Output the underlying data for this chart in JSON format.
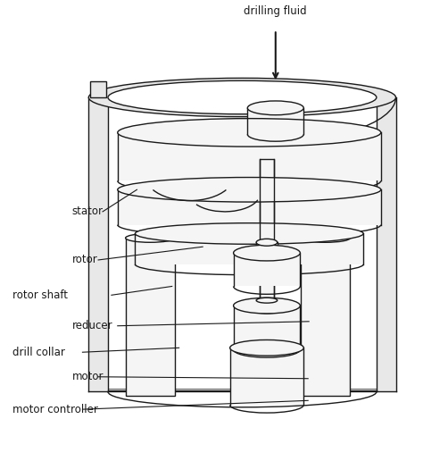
{
  "background_color": "#ffffff",
  "line_color": "#1a1a1a",
  "fill_light": "#f5f5f5",
  "fill_mid": "#e8e8e8",
  "fill_dark": "#d8d8d8",
  "labels": {
    "drilling_fluid": "drilling fluid",
    "stator": "stator",
    "rotor": "rotor",
    "rotor_shaft": "rotor shaft",
    "reducer": "reducer",
    "drill_collar": "drill collar",
    "motor": "motor",
    "motor_controller": "motor controller"
  },
  "figsize": [
    4.74,
    5.16
  ],
  "dpi": 100
}
